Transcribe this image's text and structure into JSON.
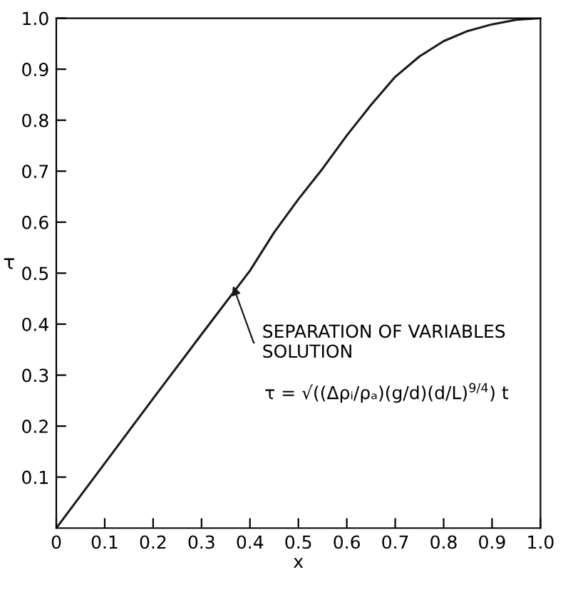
{
  "chart_data": {
    "type": "line",
    "xlabel": "x",
    "ylabel": "τ",
    "x": [
      0,
      0.1,
      0.2,
      0.3,
      0.4,
      0.45,
      0.5,
      0.55,
      0.6,
      0.65,
      0.7,
      0.75,
      0.8,
      0.85,
      0.9,
      0.95,
      1.0
    ],
    "series": [
      {
        "color": "#1a1a1a",
        "values": [
          0,
          0.127,
          0.254,
          0.38,
          0.505,
          0.58,
          0.645,
          0.705,
          0.77,
          0.83,
          0.885,
          0.925,
          0.955,
          0.975,
          0.988,
          0.997,
          1.0
        ]
      }
    ],
    "xlim": [
      0,
      1
    ],
    "ylim": [
      0,
      1
    ],
    "xticks": [
      0,
      0.1,
      0.2,
      0.3,
      0.4,
      0.5,
      0.6,
      0.7,
      0.8,
      0.9,
      {
        "value": 1,
        "label": "1.0"
      }
    ],
    "yticks": [
      0.1,
      0.2,
      0.3,
      0.4,
      0.5,
      0.6,
      0.7,
      0.8,
      0.9,
      {
        "value": 1,
        "label": "1.0"
      }
    ],
    "grid": false,
    "legend": false,
    "marker": "none",
    "line_style": "solid",
    "annotations": [
      {
        "text": "SEPARATION OF VARIABLES\nSOLUTION",
        "x": 0.365,
        "y": 0.475
      },
      "τ = √((Δρᵢ/ρₐ)(g/d)(d/L)$^{9/4}$) t"
    ]
  }
}
